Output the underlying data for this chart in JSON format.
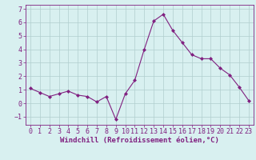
{
  "x": [
    0,
    1,
    2,
    3,
    4,
    5,
    6,
    7,
    8,
    9,
    10,
    11,
    12,
    13,
    14,
    15,
    16,
    17,
    18,
    19,
    20,
    21,
    22,
    23
  ],
  "y": [
    1.1,
    0.8,
    0.5,
    0.7,
    0.9,
    0.6,
    0.5,
    0.1,
    0.5,
    -1.2,
    0.7,
    1.7,
    4.0,
    6.1,
    6.6,
    5.4,
    4.5,
    3.6,
    3.3,
    3.3,
    2.6,
    2.1,
    1.2,
    0.2
  ],
  "line_color": "#802080",
  "marker": "D",
  "marker_size": 2,
  "background_color": "#d8f0f0",
  "grid_color": "#b0cece",
  "xlabel": "Windchill (Refroidissement éolien,°C)",
  "xlim": [
    -0.5,
    23.5
  ],
  "ylim": [
    -1.6,
    7.3
  ],
  "yticks": [
    -1,
    0,
    1,
    2,
    3,
    4,
    5,
    6,
    7
  ],
  "xticks": [
    0,
    1,
    2,
    3,
    4,
    5,
    6,
    7,
    8,
    9,
    10,
    11,
    12,
    13,
    14,
    15,
    16,
    17,
    18,
    19,
    20,
    21,
    22,
    23
  ],
  "xlabel_fontsize": 6.5,
  "tick_fontsize": 6.0,
  "tick_color": "#802080",
  "axis_color": "#802080"
}
